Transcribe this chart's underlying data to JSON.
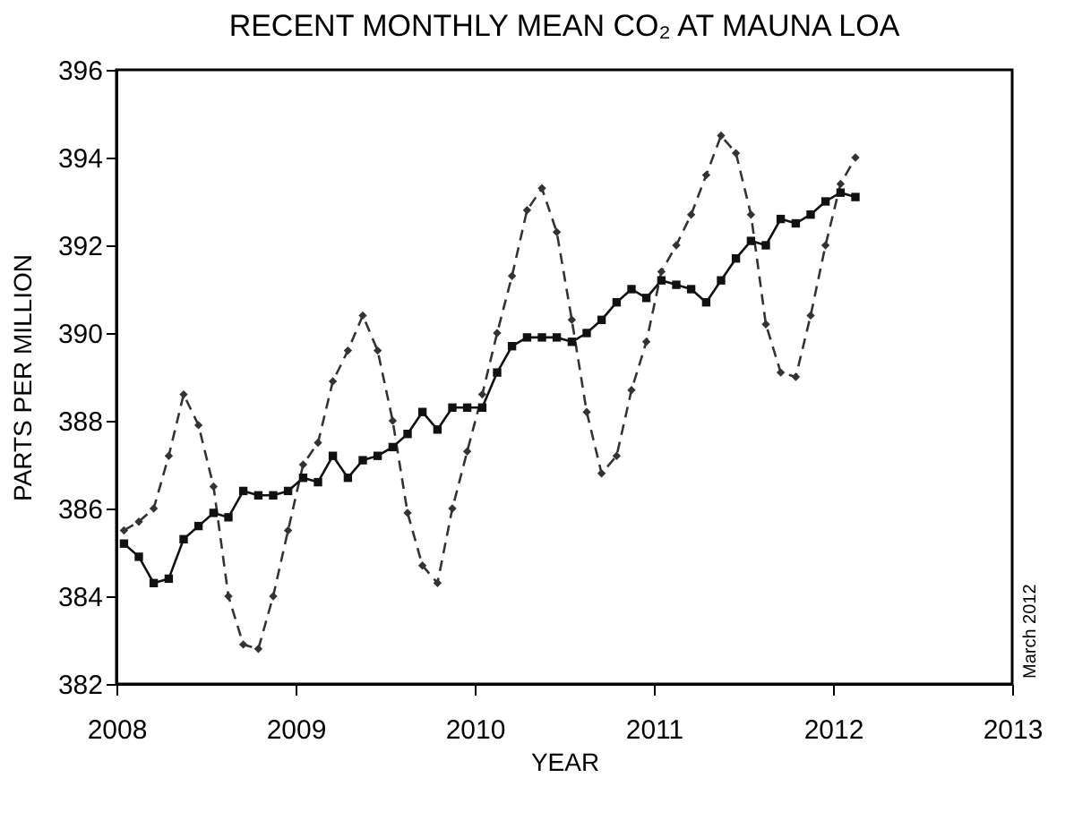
{
  "chart_data": {
    "type": "line",
    "title": "RECENT MONTHLY MEAN CO₂ AT MAUNA LOA",
    "xlabel": "YEAR",
    "ylabel": "PARTS PER MILLION",
    "x": [
      2008.042,
      2008.125,
      2008.208,
      2008.292,
      2008.375,
      2008.458,
      2008.542,
      2008.625,
      2008.708,
      2008.792,
      2008.875,
      2008.958,
      2009.042,
      2009.125,
      2009.208,
      2009.292,
      2009.375,
      2009.458,
      2009.542,
      2009.625,
      2009.708,
      2009.792,
      2009.875,
      2009.958,
      2010.042,
      2010.125,
      2010.208,
      2010.292,
      2010.375,
      2010.458,
      2010.542,
      2010.625,
      2010.708,
      2010.792,
      2010.875,
      2010.958,
      2011.042,
      2011.125,
      2011.208,
      2011.292,
      2011.375,
      2011.458,
      2011.542,
      2011.625,
      2011.708,
      2011.792,
      2011.875,
      2011.958,
      2012.042,
      2012.125
    ],
    "series": [
      {
        "color": "#333333",
        "marker": "diamond",
        "line_style": "dashed",
        "values": [
          385.5,
          385.7,
          386.0,
          387.2,
          388.6,
          387.9,
          386.5,
          384.0,
          382.9,
          382.8,
          384.0,
          385.5,
          387.0,
          387.5,
          388.9,
          389.6,
          390.4,
          389.6,
          388.0,
          385.9,
          384.7,
          384.3,
          386.0,
          387.3,
          388.6,
          390.0,
          391.3,
          392.8,
          393.3,
          392.3,
          390.3,
          388.2,
          386.8,
          387.2,
          388.7,
          389.8,
          391.4,
          392.0,
          392.7,
          393.6,
          394.5,
          394.1,
          392.7,
          390.2,
          389.1,
          389.0,
          390.4,
          392.0,
          393.4,
          394.0
        ]
      },
      {
        "color": "#111111",
        "marker": "square",
        "line_style": "solid",
        "values": [
          385.2,
          384.9,
          384.3,
          384.4,
          385.3,
          385.6,
          385.9,
          385.8,
          386.4,
          386.3,
          386.3,
          386.4,
          386.7,
          386.6,
          387.2,
          386.7,
          387.1,
          387.2,
          387.4,
          387.7,
          388.2,
          387.8,
          388.3,
          388.3,
          388.3,
          389.1,
          389.7,
          389.9,
          389.9,
          389.9,
          389.8,
          390.0,
          390.3,
          390.7,
          391.0,
          390.8,
          391.2,
          391.1,
          391.0,
          390.7,
          391.2,
          391.7,
          392.1,
          392.0,
          392.6,
          392.5,
          392.7,
          393.0,
          393.2,
          393.1
        ]
      }
    ],
    "xlim": [
      2008,
      2013
    ],
    "xticks": [
      2008,
      2009,
      2010,
      2011,
      2012,
      2013
    ],
    "ylim": [
      382,
      396
    ],
    "yticks": [
      382,
      384,
      386,
      388,
      390,
      392,
      394,
      396
    ],
    "grid": false,
    "annotations": [
      "March 2012"
    ]
  }
}
